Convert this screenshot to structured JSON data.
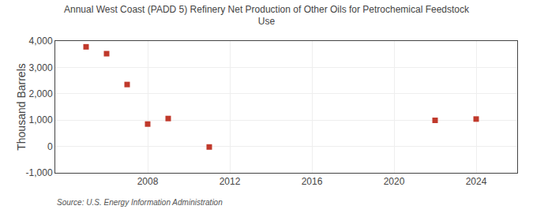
{
  "chart_data": {
    "type": "scatter",
    "title": "Annual West Coast (PADD 5) Refinery Net Production of Other Oils for Petrochemical Feedstock\nUse",
    "ylabel": "Thousand Barrels",
    "annotations": [
      "Source: U.S. Energy Information Administration"
    ],
    "x": [
      2005,
      2006,
      2007,
      2008,
      2009,
      2011,
      2022,
      2024
    ],
    "values": [
      3780,
      3520,
      2350,
      850,
      1060,
      -20,
      990,
      1040
    ],
    "color": "#c0392b",
    "marker": "square",
    "xlim": [
      2003.5,
      2026
    ],
    "ylim": [
      -1000,
      4000
    ],
    "xticks": [
      2008,
      2012,
      2016,
      2020,
      2024
    ],
    "yticks": [
      {
        "value": -1000,
        "label": "-1,000"
      },
      0,
      {
        "value": 1000,
        "label": "1,000"
      },
      {
        "value": 2000,
        "label": "2,000"
      },
      {
        "value": 3000,
        "label": "3,000"
      },
      {
        "value": 4000,
        "label": "4,000"
      }
    ],
    "grid": true
  }
}
